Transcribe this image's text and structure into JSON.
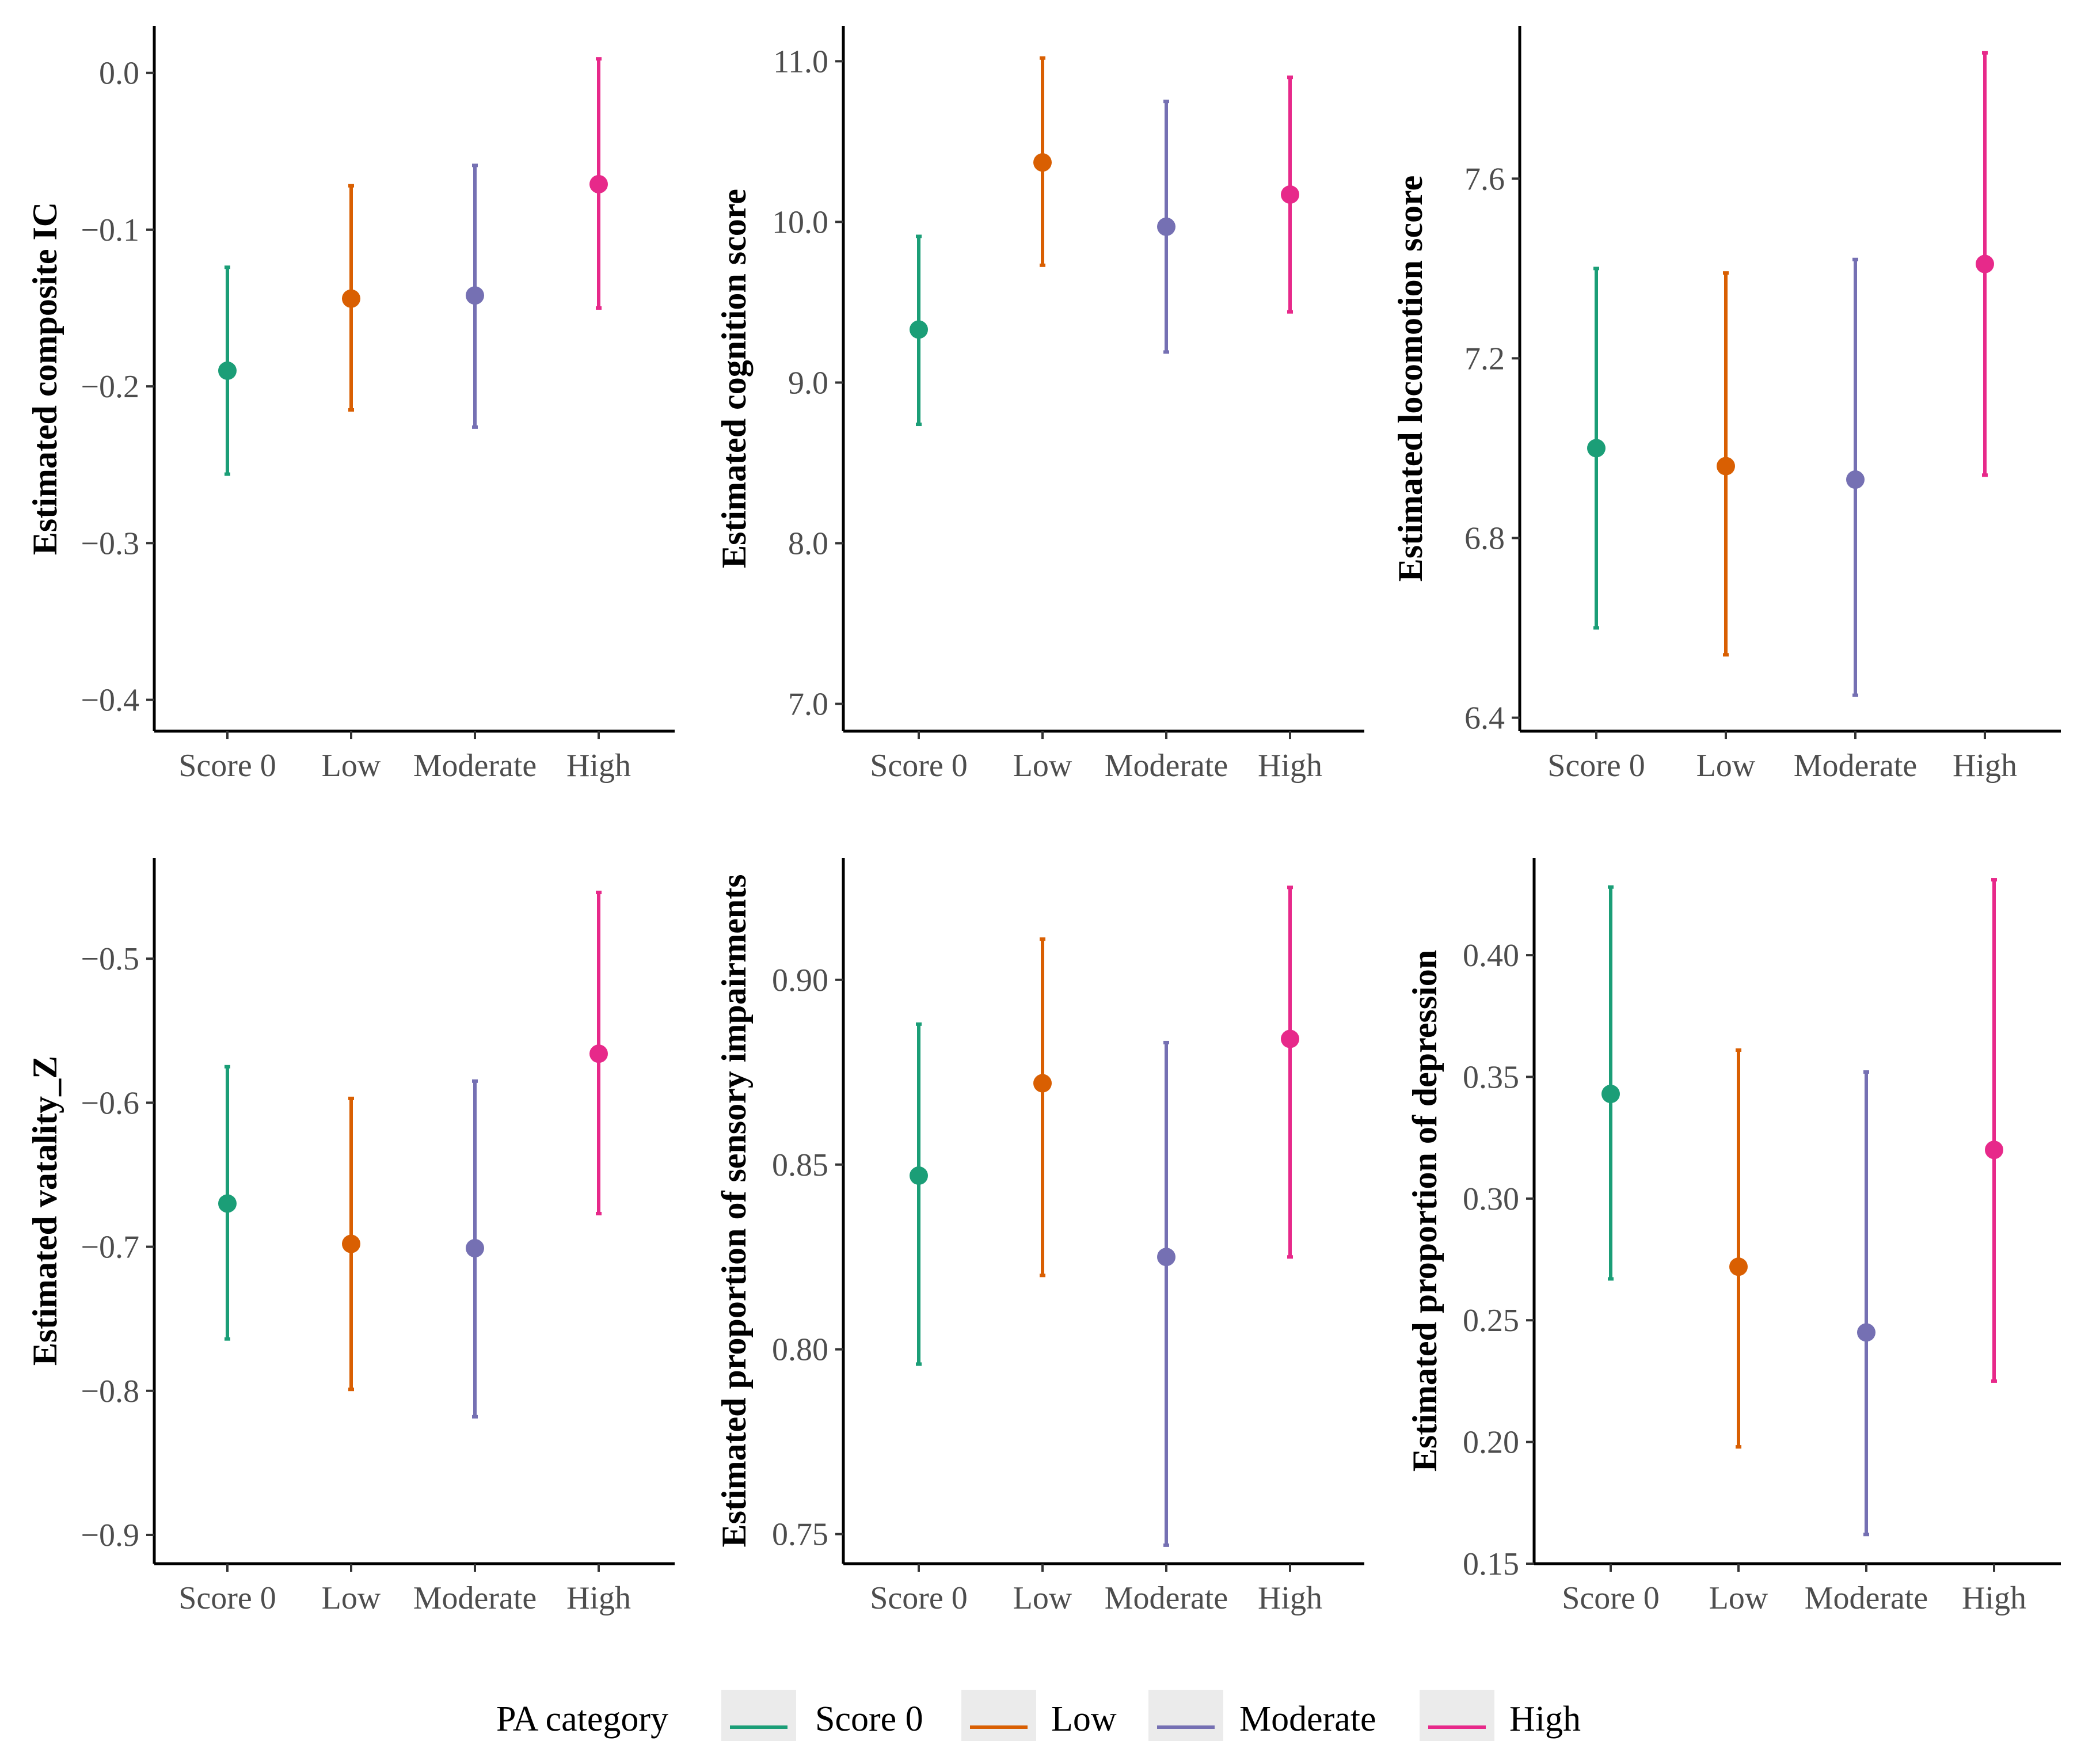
{
  "legend": {
    "title": "PA category",
    "items": [
      {
        "label": "Score 0",
        "color": "#1b9e77"
      },
      {
        "label": "Low",
        "color": "#d95f02"
      },
      {
        "label": "Moderate",
        "color": "#7570b3"
      },
      {
        "label": "High",
        "color": "#e7298a"
      }
    ]
  },
  "chart_data": [
    {
      "type": "errorbar",
      "ylabel": "Estimated composite IC",
      "categories": [
        "Score 0",
        "Low",
        "Moderate",
        "High"
      ],
      "y_ticks": [
        0.0,
        -0.1,
        -0.2,
        -0.3,
        -0.4
      ],
      "y_tick_labels": [
        "0.0",
        "−0.1",
        "−0.2",
        "−0.3",
        "−0.4"
      ],
      "ylim": [
        -0.42,
        0.03
      ],
      "points": [
        {
          "category": "Score 0",
          "estimate": -0.19,
          "lower": -0.256,
          "upper": -0.124
        },
        {
          "category": "Low",
          "estimate": -0.144,
          "lower": -0.215,
          "upper": -0.072
        },
        {
          "category": "Moderate",
          "estimate": -0.142,
          "lower": -0.226,
          "upper": -0.059
        },
        {
          "category": "High",
          "estimate": -0.071,
          "lower": -0.15,
          "upper": 0.009
        }
      ]
    },
    {
      "type": "errorbar",
      "ylabel": "Estimated cognition score",
      "categories": [
        "Score 0",
        "Low",
        "Moderate",
        "High"
      ],
      "y_ticks": [
        11.0,
        10.0,
        9.0,
        8.0,
        7.0
      ],
      "y_tick_labels": [
        "11.0",
        "10.0",
        "9.0",
        "8.0",
        "7.0"
      ],
      "ylim": [
        6.83,
        11.22
      ],
      "points": [
        {
          "category": "Score 0",
          "estimate": 9.33,
          "lower": 8.74,
          "upper": 9.91
        },
        {
          "category": "Low",
          "estimate": 10.37,
          "lower": 9.73,
          "upper": 11.02
        },
        {
          "category": "Moderate",
          "estimate": 9.97,
          "lower": 9.19,
          "upper": 10.75
        },
        {
          "category": "High",
          "estimate": 10.17,
          "lower": 9.44,
          "upper": 10.9
        }
      ]
    },
    {
      "type": "errorbar",
      "ylabel": "Estimated locomotion score",
      "categories": [
        "Score 0",
        "Low",
        "Moderate",
        "High"
      ],
      "y_ticks": [
        7.6,
        7.2,
        6.8,
        6.4
      ],
      "y_tick_labels": [
        "7.6",
        "7.2",
        "6.8",
        "6.4"
      ],
      "ylim": [
        6.37,
        7.94
      ],
      "points": [
        {
          "category": "Score 0",
          "estimate": 7.0,
          "lower": 6.6,
          "upper": 7.4
        },
        {
          "category": "Low",
          "estimate": 6.96,
          "lower": 6.54,
          "upper": 7.39
        },
        {
          "category": "Moderate",
          "estimate": 6.93,
          "lower": 6.45,
          "upper": 7.42
        },
        {
          "category": "High",
          "estimate": 7.41,
          "lower": 6.94,
          "upper": 7.88
        }
      ]
    },
    {
      "type": "errorbar",
      "ylabel": "Estimated vatality_Z",
      "categories": [
        "Score 0",
        "Low",
        "Moderate",
        "High"
      ],
      "y_ticks": [
        -0.5,
        -0.6,
        -0.7,
        -0.8,
        -0.9
      ],
      "y_tick_labels": [
        "−0.5",
        "−0.6",
        "−0.7",
        "−0.8",
        "−0.9"
      ],
      "ylim": [
        -0.92,
        -0.43
      ],
      "points": [
        {
          "category": "Score 0",
          "estimate": -0.67,
          "lower": -0.764,
          "upper": -0.575
        },
        {
          "category": "Low",
          "estimate": -0.698,
          "lower": -0.799,
          "upper": -0.597
        },
        {
          "category": "Moderate",
          "estimate": -0.701,
          "lower": -0.818,
          "upper": -0.585
        },
        {
          "category": "High",
          "estimate": -0.566,
          "lower": -0.677,
          "upper": -0.454
        }
      ]
    },
    {
      "type": "errorbar",
      "ylabel": "Estimated proportion of sensory impairments",
      "categories": [
        "Score 0",
        "Low",
        "Moderate",
        "High"
      ],
      "y_ticks": [
        0.9,
        0.85,
        0.8,
        0.75
      ],
      "y_tick_labels": [
        "0.90",
        "0.85",
        "0.80",
        "0.75"
      ],
      "ylim": [
        0.742,
        0.933
      ],
      "points": [
        {
          "category": "Score 0",
          "estimate": 0.847,
          "lower": 0.796,
          "upper": 0.888
        },
        {
          "category": "Low",
          "estimate": 0.872,
          "lower": 0.82,
          "upper": 0.911
        },
        {
          "category": "Moderate",
          "estimate": 0.825,
          "lower": 0.747,
          "upper": 0.883
        },
        {
          "category": "High",
          "estimate": 0.884,
          "lower": 0.825,
          "upper": 0.925
        }
      ]
    },
    {
      "type": "errorbar",
      "ylabel": "Estimated proportion of depression",
      "categories": [
        "Score 0",
        "Low",
        "Moderate",
        "High"
      ],
      "y_ticks": [
        0.4,
        0.35,
        0.3,
        0.25,
        0.2,
        0.15
      ],
      "y_tick_labels": [
        "0.40",
        "0.35",
        "0.30",
        "0.25",
        "0.20",
        "0.15"
      ],
      "ylim": [
        0.15,
        0.44
      ],
      "points": [
        {
          "category": "Score 0",
          "estimate": 0.343,
          "lower": 0.267,
          "upper": 0.428
        },
        {
          "category": "Low",
          "estimate": 0.272,
          "lower": 0.198,
          "upper": 0.361
        },
        {
          "category": "Moderate",
          "estimate": 0.245,
          "lower": 0.162,
          "upper": 0.352
        },
        {
          "category": "High",
          "estimate": 0.32,
          "lower": 0.225,
          "upper": 0.431
        }
      ]
    }
  ]
}
